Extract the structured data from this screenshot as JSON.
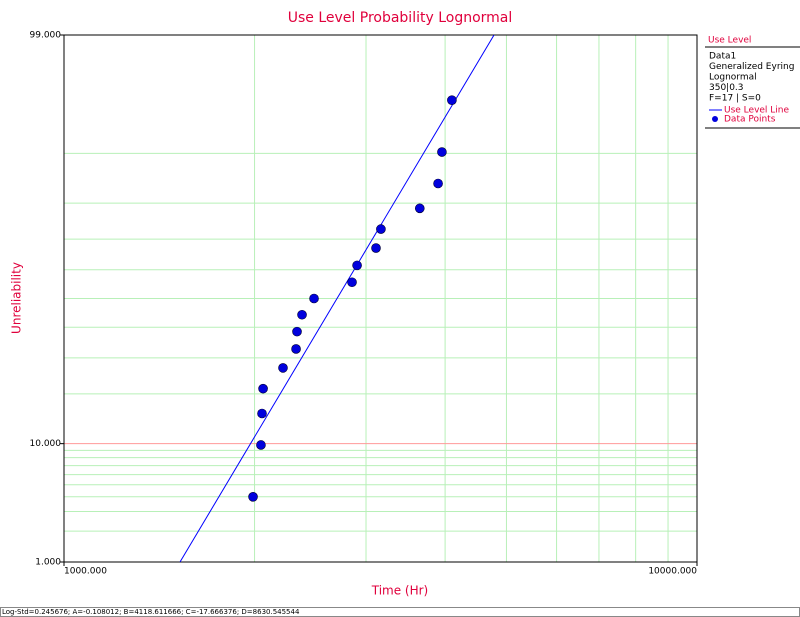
{
  "chart_data": {
    "type": "probability-lognormal",
    "title": "Use Level Probability Lognormal",
    "xlabel": "Time (Hr)",
    "ylabel": "Unreliability",
    "xlim": [
      1000,
      10000
    ],
    "xscale": "log",
    "xticks": [
      {
        "value": 1000,
        "label": "1000.000"
      },
      {
        "value": 10000,
        "label": "10000.000"
      }
    ],
    "xminor": [
      2000,
      3000,
      4000,
      5000,
      6000,
      7000,
      8000,
      9000
    ],
    "ylim": [
      1,
      99
    ],
    "yscale": "lognormal-probability",
    "yticks": [
      {
        "value": 1,
        "label": "1.000"
      },
      {
        "value": 10,
        "label": "10.000"
      },
      {
        "value": 99,
        "label": "99.000"
      }
    ],
    "yminor": [
      2,
      3,
      4,
      5,
      6,
      7,
      8,
      9,
      20,
      30,
      40,
      50,
      60,
      70,
      80,
      90
    ],
    "major_grid_color": "#ff9999",
    "minor_grid_color": "#b8f0b8",
    "legend": {
      "title": "Use Level",
      "lines": [
        "Data1",
        "Generalized Eyring",
        "Lognormal",
        "350|0.3",
        "F=17 | S=0"
      ]
    },
    "series": [
      {
        "name": "Use Level Line",
        "kind": "line",
        "color": "#0000ff",
        "x": [
          1525,
          4779
        ],
        "values": [
          1,
          99
        ]
      },
      {
        "name": "Data Points",
        "kind": "points",
        "color": "#0000dd",
        "x": [
          1989,
          2047,
          2055,
          2063,
          2218,
          2326,
          2334,
          2377,
          2483,
          2851,
          2904,
          3111,
          3167,
          3648,
          3899,
          3954,
          4100
        ],
        "values": [
          4.0,
          9.8,
          15.5,
          21.3,
          27.0,
          32.8,
          38.5,
          44.3,
          50.0,
          55.7,
          61.5,
          67.2,
          73.0,
          78.7,
          84.5,
          90.2,
          96.0
        ]
      }
    ]
  },
  "footer": "Log-Std=0.245676; A=-0.108012; B=4118.611666; C=-17.666376; D=8630.545544"
}
